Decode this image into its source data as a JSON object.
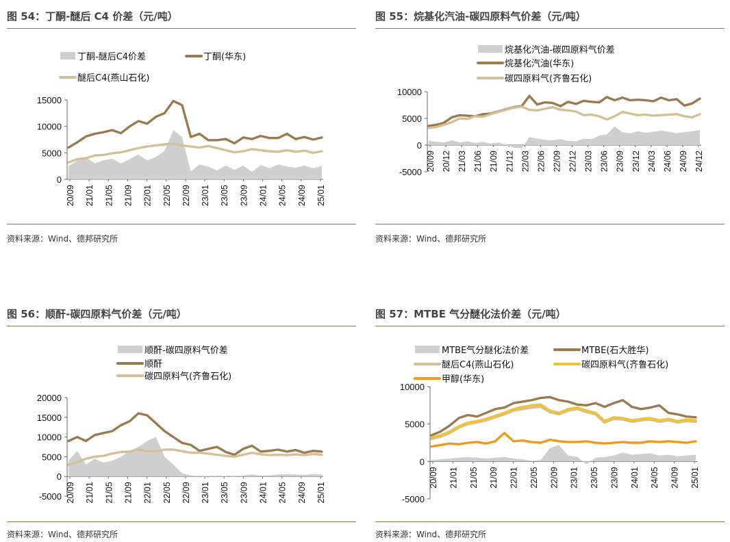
{
  "source_text": "资料来源：Wind、德邦研究所",
  "colors": {
    "area": "#cfcfcf",
    "brown": "#9c7a4f",
    "tan": "#d3c096",
    "yellow": "#f1c232",
    "orange": "#ee9a1c",
    "rule": "#8d6f45"
  },
  "chart_data": [
    {
      "type": "line",
      "id": "c54",
      "title": "图 54：丁酮-醚后 C4 价差（元/吨）",
      "ylim": [
        0,
        15000
      ],
      "yticks": [
        0,
        5000,
        10000,
        15000
      ],
      "ytick_labels": [
        "0",
        "5000",
        "10000",
        "15000"
      ],
      "xtick_labels": [
        "20/09",
        "21/01",
        "21/05",
        "21/09",
        "22/01",
        "22/05",
        "22/09",
        "23/01",
        "23/05",
        "23/09",
        "24/01",
        "24/05",
        "24/09",
        "25/01"
      ],
      "legend": [
        "丁酮-醚后C4价差",
        "丁酮(华东)",
        "醚后C4(燕山石化)"
      ],
      "series": [
        {
          "name": "丁酮-醚后C4价差",
          "kind": "area",
          "color": "#cfcfcf",
          "values": [
            2500,
            3500,
            4200,
            3000,
            3600,
            3900,
            3000,
            3800,
            4700,
            3600,
            4200,
            5400,
            9300,
            8000,
            1500,
            2800,
            2400,
            1700,
            2600,
            1800,
            2600,
            1400,
            2700,
            2100,
            2800,
            2400,
            2200,
            2600,
            2100,
            2500
          ]
        },
        {
          "name": "丁酮(华东)",
          "kind": "line",
          "color": "#9c7a4f",
          "values": [
            6000,
            7000,
            8100,
            8600,
            8900,
            9300,
            8700,
            10000,
            11000,
            10500,
            11800,
            12500,
            14800,
            14000,
            8000,
            8600,
            7400,
            7400,
            7600,
            6800,
            7900,
            7600,
            8200,
            7800,
            7800,
            8600,
            7600,
            8000,
            7500,
            7900
          ]
        },
        {
          "name": "醚后C4(燕山石化)",
          "kind": "line",
          "color": "#d3c096",
          "values": [
            3200,
            3800,
            4000,
            4500,
            4600,
            4900,
            5100,
            5500,
            5900,
            6200,
            6400,
            6600,
            6700,
            6400,
            6200,
            6000,
            6300,
            5900,
            5500,
            5100,
            5300,
            5700,
            5500,
            5300,
            5200,
            5500,
            5200,
            5400,
            5000,
            5300
          ]
        }
      ]
    },
    {
      "type": "line",
      "id": "c55",
      "title": "图 55：烷基化汽油-碳四原料气价差（元/吨）",
      "ylim": [
        -5000,
        10000
      ],
      "yticks": [
        -5000,
        0,
        5000,
        10000
      ],
      "ytick_labels": [
        "-5000",
        "0",
        "5000",
        "10000"
      ],
      "xtick_labels": [
        "20/09",
        "20/12",
        "21/03",
        "21/06",
        "21/09",
        "21/12",
        "22/03",
        "22/06",
        "22/09",
        "22/12",
        "23/03",
        "23/06",
        "23/09",
        "23/12",
        "24/03",
        "24/06",
        "24/09",
        "24/12"
      ],
      "legend": [
        "烷基化汽油-碳四原料气价差",
        "烷基化汽油(华东)",
        "碳四原料气(齐鲁石化)"
      ],
      "series": [
        {
          "name": "烷基化汽油-碳四原料气价差",
          "kind": "area",
          "color": "#cfcfcf",
          "values": [
            800,
            600,
            500,
            900,
            500,
            700,
            400,
            600,
            300,
            500,
            100,
            -500,
            -600,
            1500,
            1200,
            1000,
            900,
            1100,
            800,
            700,
            1200,
            1100,
            1800,
            2000,
            3500,
            2400,
            2200,
            2600,
            2300,
            2500,
            2700,
            2500,
            2200,
            2400,
            2600,
            2800
          ]
        },
        {
          "name": "烷基化汽油(华东)",
          "kind": "line",
          "color": "#9c7a4f",
          "values": [
            3600,
            3800,
            4200,
            5200,
            5600,
            5500,
            5400,
            5800,
            5900,
            6300,
            6700,
            7100,
            7300,
            9200,
            7600,
            8000,
            7900,
            7300,
            8100,
            7700,
            8300,
            8100,
            8000,
            9000,
            8400,
            8900,
            8400,
            8500,
            8400,
            8200,
            8900,
            8400,
            8600,
            7400,
            7800,
            8700
          ]
        },
        {
          "name": "碳四原料气(齐鲁石化)",
          "kind": "line",
          "color": "#d3c096",
          "values": [
            3200,
            3400,
            3800,
            4300,
            5000,
            4900,
            5400,
            5300,
            5800,
            6200,
            6600,
            7000,
            7200,
            6600,
            6500,
            6800,
            7100,
            6600,
            6500,
            6300,
            5600,
            5700,
            5400,
            4800,
            5400,
            6200,
            5900,
            5600,
            5700,
            5500,
            5600,
            5700,
            5800,
            5400,
            5200,
            5800
          ]
        }
      ]
    },
    {
      "type": "line",
      "id": "c56",
      "title": "图 56：顺酐-碳四原料气价差（元/吨）",
      "ylim": [
        -5000,
        20000
      ],
      "yticks": [
        -5000,
        0,
        5000,
        10000,
        15000,
        20000
      ],
      "ytick_labels": [
        "-5000",
        "0",
        "5000",
        "10000",
        "15000",
        "20000"
      ],
      "xtick_labels": [
        "20/09",
        "21/01",
        "21/05",
        "21/09",
        "22/01",
        "22/05",
        "22/09",
        "23/01",
        "23/05",
        "23/09",
        "24/01",
        "24/05",
        "24/09",
        "25/01"
      ],
      "legend": [
        "顺酐-碳四原料气价差",
        "顺酐",
        "碳四原料气(齐鲁石化)"
      ],
      "series": [
        {
          "name": "顺酐-碳四原料气价差",
          "kind": "area",
          "color": "#cfcfcf",
          "values": [
            4000,
            6500,
            3000,
            4500,
            3500,
            4000,
            5000,
            6500,
            7500,
            9000,
            10000,
            5000,
            3000,
            800,
            300,
            0,
            -300,
            200,
            100,
            -200,
            300,
            500,
            200,
            300,
            500,
            600,
            500,
            400,
            600,
            500
          ]
        },
        {
          "name": "顺酐",
          "kind": "line",
          "color": "#9c7a4f",
          "values": [
            9000,
            10000,
            9000,
            10500,
            11000,
            11500,
            13000,
            14000,
            16000,
            15500,
            13500,
            11500,
            10000,
            8500,
            8000,
            6500,
            7000,
            7500,
            6200,
            5500,
            7000,
            7800,
            6300,
            6500,
            6800,
            6300,
            6700,
            6000,
            6500,
            6300
          ]
        },
        {
          "name": "碳四原料气(齐鲁石化)",
          "kind": "line",
          "color": "#d3c096",
          "values": [
            3000,
            3600,
            4500,
            5000,
            5200,
            5800,
            6200,
            6300,
            6800,
            6400,
            6400,
            6800,
            6800,
            6400,
            6000,
            6000,
            5800,
            5500,
            5200,
            5000,
            5500,
            6000,
            5600,
            5400,
            5500,
            5400,
            5600,
            5400,
            5700,
            5500
          ]
        }
      ]
    },
    {
      "type": "line",
      "id": "c57",
      "title": "图 57：MTBE 气分醚化法价差（元/吨）",
      "ylim": [
        -5000,
        10000
      ],
      "yticks": [
        -5000,
        0,
        5000,
        10000
      ],
      "ytick_labels": [
        "-5000",
        "0",
        "5000",
        "10000"
      ],
      "xtick_labels": [
        "20/09",
        "21/01",
        "21/05",
        "21/09",
        "22/01",
        "22/05",
        "22/09",
        "23/01",
        "23/05",
        "23/09",
        "24/01",
        "24/05",
        "24/09",
        "25/01"
      ],
      "legend": [
        "MTBE气分醚化法价差",
        "MTBE(石大胜华)",
        "醚后C4(燕山石化)",
        "碳四原料气(齐鲁石化)",
        "甲醇(华东)"
      ],
      "series": [
        {
          "name": "MTBE气分醚化法价差",
          "kind": "area",
          "color": "#cfcfcf",
          "values": [
            200,
            300,
            400,
            500,
            600,
            500,
            400,
            500,
            600,
            400,
            300,
            100,
            200,
            1800,
            2200,
            800,
            600,
            -400,
            500,
            600,
            800,
            1200,
            900,
            1000,
            1100,
            800,
            900,
            700,
            800,
            900
          ]
        },
        {
          "name": "MTBE(石大胜华)",
          "kind": "line",
          "color": "#9c7a4f",
          "values": [
            3500,
            4000,
            4800,
            5800,
            6200,
            6000,
            6500,
            7000,
            7200,
            7800,
            8000,
            8200,
            8500,
            8600,
            8200,
            8000,
            7600,
            7500,
            7800,
            7300,
            7800,
            8200,
            7300,
            7000,
            7200,
            7500,
            6500,
            6300,
            6000,
            5900
          ]
        },
        {
          "name": "醚后C4(燕山石化)",
          "kind": "line",
          "color": "#d3c096",
          "values": [
            3000,
            3300,
            3800,
            4500,
            5000,
            5200,
            5500,
            5900,
            6300,
            6800,
            7000,
            7200,
            7300,
            6600,
            6300,
            6800,
            7000,
            6600,
            6300,
            5200,
            5700,
            5600,
            5300,
            5500,
            5600,
            5300,
            5500,
            5200,
            5400,
            5300
          ]
        },
        {
          "name": "碳四原料气(齐鲁石化)",
          "kind": "line",
          "color": "#f1c232",
          "values": [
            3200,
            3500,
            4000,
            4700,
            5200,
            5400,
            5700,
            6100,
            6500,
            7000,
            7300,
            7500,
            7600,
            6800,
            6500,
            7000,
            7200,
            6800,
            6500,
            5400,
            5900,
            5800,
            5500,
            5700,
            5800,
            5500,
            5700,
            5400,
            5600,
            5500
          ]
        },
        {
          "name": "甲醇(华东)",
          "kind": "line",
          "color": "#ee9a1c",
          "values": [
            2000,
            2200,
            2400,
            2300,
            2500,
            2600,
            2400,
            2700,
            3800,
            2700,
            2800,
            2600,
            2500,
            2900,
            2700,
            2600,
            2600,
            2700,
            2500,
            2400,
            2500,
            2600,
            2500,
            2500,
            2700,
            2600,
            2700,
            2600,
            2500,
            2700
          ]
        }
      ]
    }
  ]
}
